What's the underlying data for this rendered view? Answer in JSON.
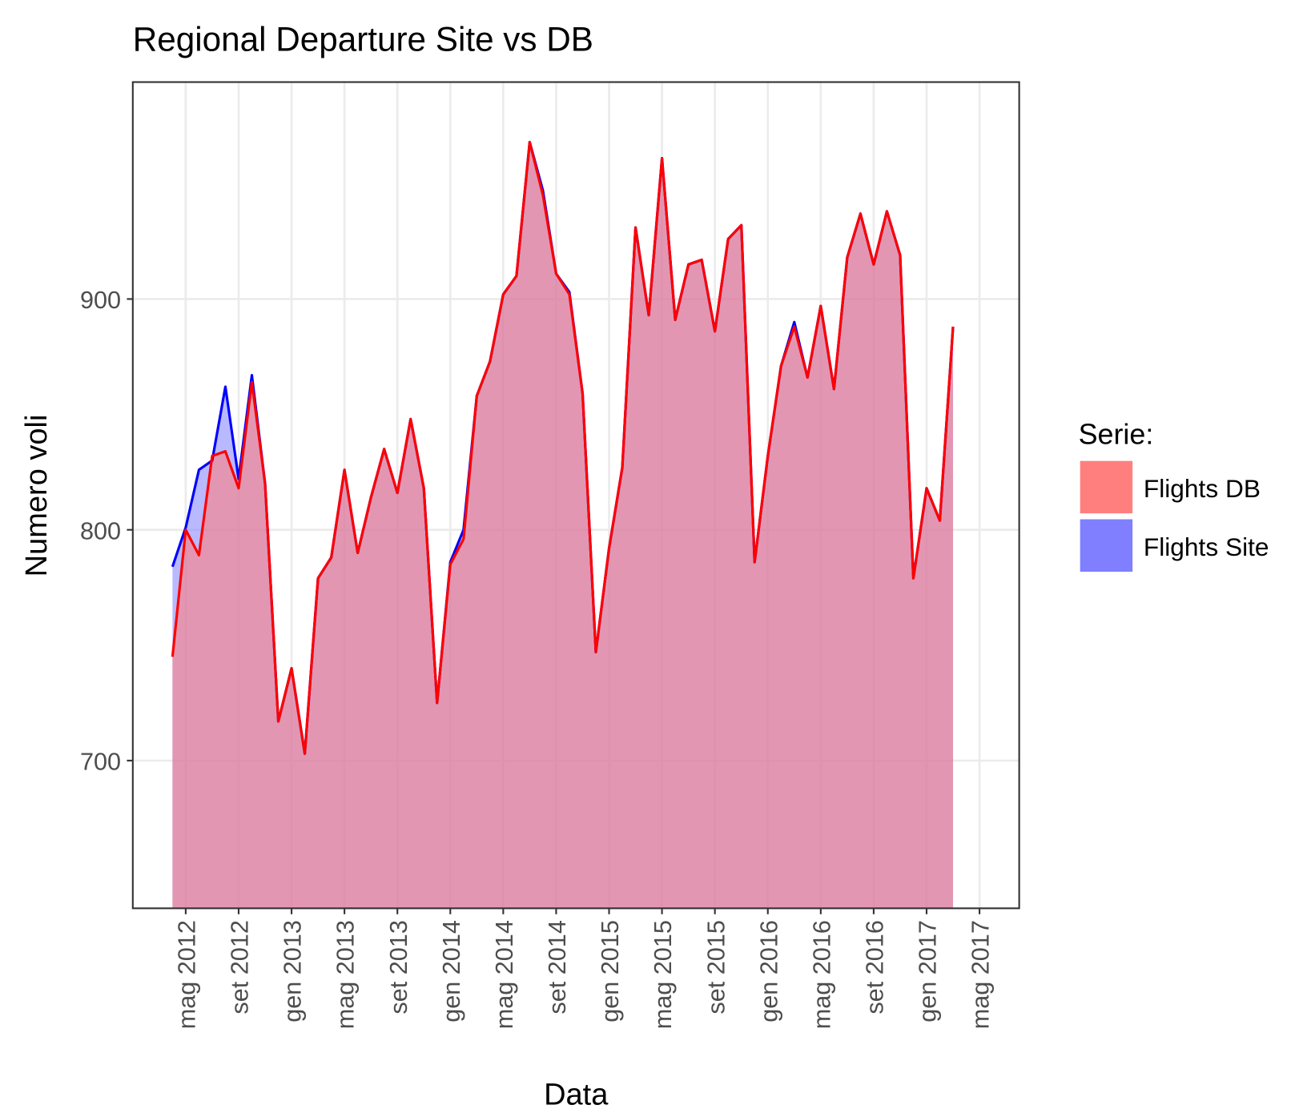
{
  "chart_data": {
    "type": "area",
    "title": "Regional Departure Site vs DB",
    "x_label": "Data",
    "y_label": "Numero voli",
    "legend_title": "Serie:",
    "legend": "right",
    "grid": true,
    "x": [
      "2012-04",
      "2012-05",
      "2012-06",
      "2012-07",
      "2012-08",
      "2012-09",
      "2012-10",
      "2012-11",
      "2012-12",
      "2013-01",
      "2013-02",
      "2013-03",
      "2013-04",
      "2013-05",
      "2013-06",
      "2013-07",
      "2013-08",
      "2013-09",
      "2013-10",
      "2013-11",
      "2013-12",
      "2014-01",
      "2014-02",
      "2014-03",
      "2014-04",
      "2014-05",
      "2014-06",
      "2014-07",
      "2014-08",
      "2014-09",
      "2014-10",
      "2014-11",
      "2014-12",
      "2015-01",
      "2015-02",
      "2015-03",
      "2015-04",
      "2015-05",
      "2015-06",
      "2015-07",
      "2015-08",
      "2015-09",
      "2015-10",
      "2015-11",
      "2015-12",
      "2016-01",
      "2016-02",
      "2016-03",
      "2016-04",
      "2016-05",
      "2016-06",
      "2016-07",
      "2016-08",
      "2016-09",
      "2016-10",
      "2016-11",
      "2016-12",
      "2017-01",
      "2017-02",
      "2017-03"
    ],
    "series": [
      {
        "name": "Flights DB",
        "color": "#ff0000",
        "fill": "#ff7f7f",
        "values": [
          745,
          800,
          789,
          832,
          834,
          818,
          864,
          820,
          717,
          740,
          703,
          779,
          788,
          826,
          790,
          814,
          835,
          816,
          848,
          818,
          725,
          785,
          796,
          858,
          873,
          902,
          910,
          968,
          945,
          911,
          902,
          859,
          747,
          792,
          827,
          931,
          893,
          961,
          891,
          915,
          917,
          886,
          926,
          932,
          786,
          832,
          871,
          888,
          866,
          897,
          861,
          918,
          937,
          915,
          938,
          919,
          779,
          818,
          804,
          888
        ]
      },
      {
        "name": "Flights Site",
        "color": "#0000ff",
        "fill": "#7f7fff",
        "values": [
          784,
          801,
          826,
          830,
          862,
          822,
          867,
          820,
          717,
          740,
          703,
          779,
          788,
          826,
          790,
          814,
          835,
          816,
          848,
          818,
          725,
          786,
          800,
          858,
          873,
          902,
          910,
          968,
          947,
          911,
          903,
          859,
          747,
          792,
          827,
          931,
          893,
          961,
          891,
          915,
          917,
          886,
          926,
          932,
          786,
          832,
          871,
          890,
          866,
          897,
          861,
          918,
          937,
          915,
          938,
          919,
          779,
          818,
          804,
          888
        ]
      }
    ],
    "xlim": [
      "2012-01",
      "2017-08"
    ],
    "xticks": [
      {
        "value": "2012-05",
        "label": "mag 2012"
      },
      {
        "value": "2012-09",
        "label": "set 2012"
      },
      {
        "value": "2013-01",
        "label": "gen 2013"
      },
      {
        "value": "2013-05",
        "label": "mag 2013"
      },
      {
        "value": "2013-09",
        "label": "set 2013"
      },
      {
        "value": "2014-01",
        "label": "gen 2014"
      },
      {
        "value": "2014-05",
        "label": "mag 2014"
      },
      {
        "value": "2014-09",
        "label": "set 2014"
      },
      {
        "value": "2015-01",
        "label": "gen 2015"
      },
      {
        "value": "2015-05",
        "label": "mag 2015"
      },
      {
        "value": "2015-09",
        "label": "set 2015"
      },
      {
        "value": "2016-01",
        "label": "gen 2016"
      },
      {
        "value": "2016-05",
        "label": "mag 2016"
      },
      {
        "value": "2016-09",
        "label": "set 2016"
      },
      {
        "value": "2017-01",
        "label": "gen 2017"
      },
      {
        "value": "2017-05",
        "label": "mag 2017"
      }
    ],
    "ylim": [
      636,
      994
    ],
    "yticks": [
      700,
      800,
      900
    ]
  }
}
